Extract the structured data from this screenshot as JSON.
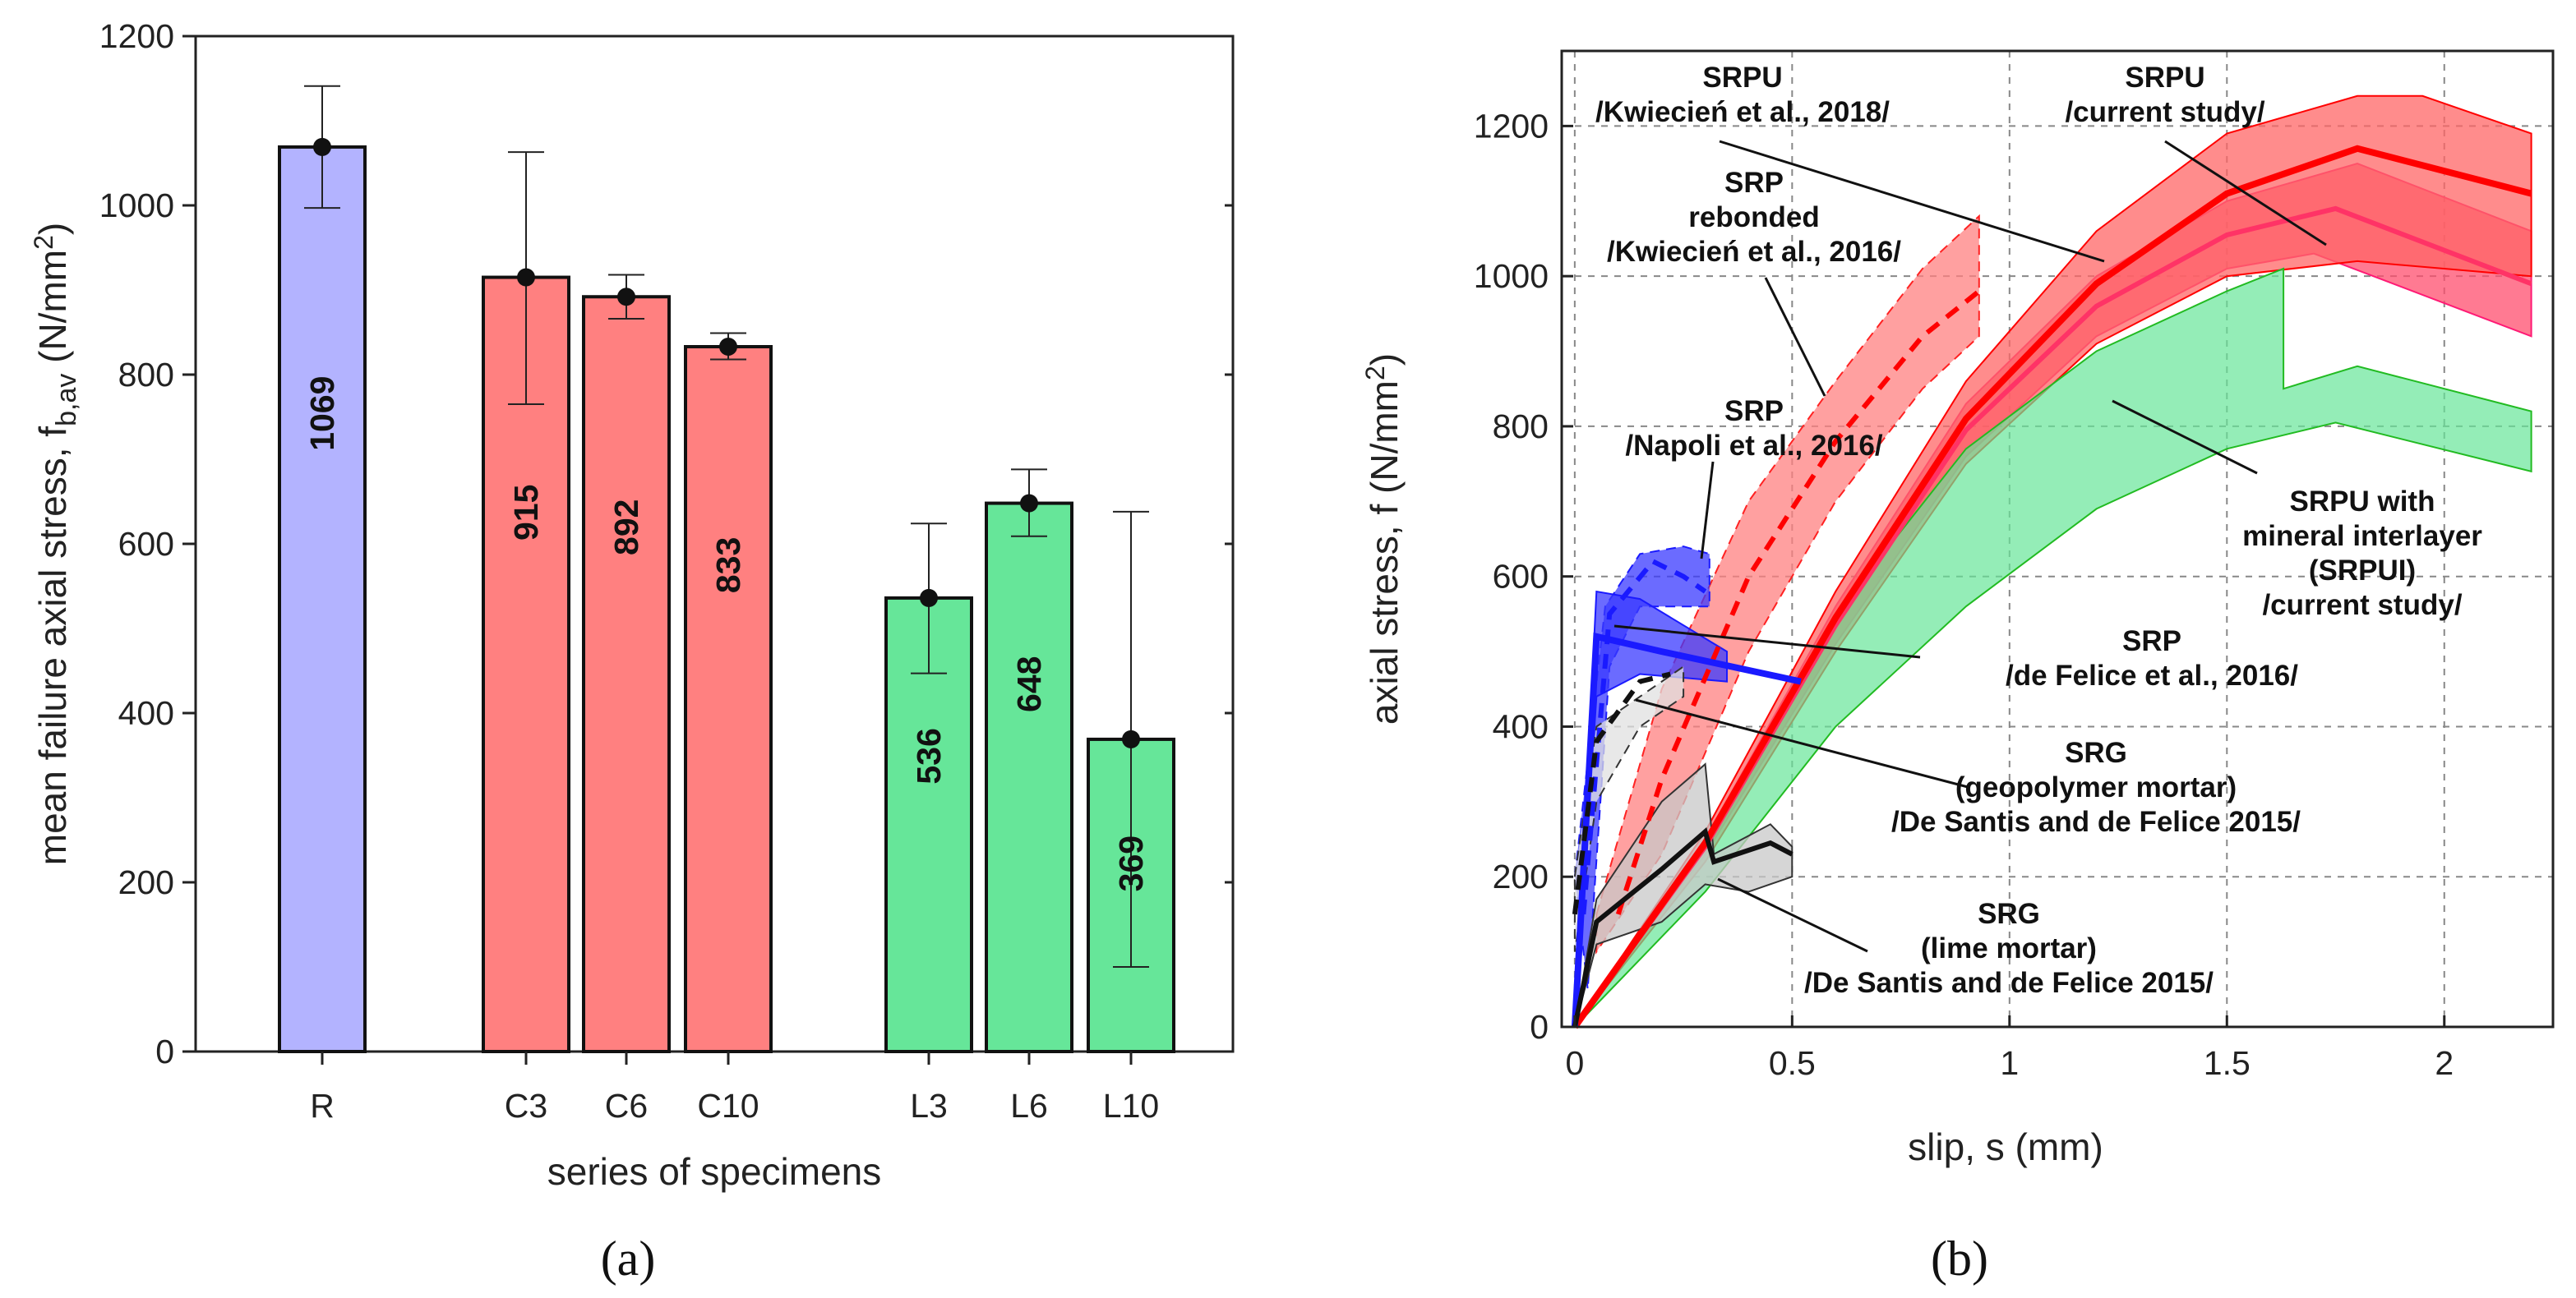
{
  "chart_data": [
    {
      "type": "bar",
      "panel_label": "(a)",
      "xlabel": "series of specimens",
      "ylabel": "mean failure axial stress, f",
      "ylabel_sub": "b,av",
      "ylabel_unit": " (N/mm",
      "ylabel_sup": "2",
      "ylabel_close": ")",
      "ylim": [
        0,
        1200
      ],
      "yticks": [
        0,
        200,
        400,
        600,
        800,
        1000,
        1200
      ],
      "categories": [
        "R",
        "C3",
        "C6",
        "C10",
        "L3",
        "L6",
        "L10"
      ],
      "values": [
        1069,
        915,
        892,
        833,
        536,
        648,
        369
      ],
      "value_labels": [
        "1069",
        "915",
        "892",
        "833",
        "536",
        "648",
        "369"
      ],
      "error_low": [
        997,
        765,
        866,
        818,
        447,
        609,
        100
      ],
      "error_high": [
        1141,
        1063,
        918,
        849,
        624,
        688,
        638
      ],
      "colors": [
        "#b3b3ff",
        "#ff8080",
        "#ff8080",
        "#ff8080",
        "#66e699",
        "#66e699",
        "#66e699"
      ]
    },
    {
      "type": "area",
      "panel_label": "(b)",
      "xlabel": "slip, s (mm)",
      "ylabel": "axial stress, f (N/mm",
      "ylabel_sup": "2",
      "ylabel_close": ")",
      "xlim": [
        -0.03,
        2.25
      ],
      "ylim": [
        0,
        1300
      ],
      "xticks": [
        0,
        0.5,
        1,
        1.5,
        2
      ],
      "xtick_labels": [
        "0",
        "0.5",
        "1",
        "1.5",
        "2"
      ],
      "yticks": [
        0,
        200,
        400,
        600,
        800,
        1000,
        1200
      ],
      "grid": true,
      "series": [
        {
          "name": "SRPU /Kwiecień et al., 2018/",
          "color": "#ff4d6d",
          "upper": [
            [
              0,
              0
            ],
            [
              0.3,
              250
            ],
            [
              0.6,
              560
            ],
            [
              0.9,
              830
            ],
            [
              1.2,
              1000
            ],
            [
              1.5,
              1100
            ],
            [
              1.8,
              1150
            ],
            [
              2.2,
              1060
            ]
          ],
          "lower": [
            [
              0,
              0
            ],
            [
              0.3,
              230
            ],
            [
              0.6,
              510
            ],
            [
              0.9,
              760
            ],
            [
              1.2,
              920
            ],
            [
              1.5,
              1010
            ],
            [
              1.7,
              1030
            ],
            [
              2.2,
              920
            ]
          ],
          "mean": [
            [
              0,
              0
            ],
            [
              0.3,
              240
            ],
            [
              0.6,
              535
            ],
            [
              0.9,
              795
            ],
            [
              1.2,
              960
            ],
            [
              1.5,
              1055
            ],
            [
              1.75,
              1090
            ],
            [
              2.2,
              990
            ]
          ]
        },
        {
          "name": "SRPU /current study/",
          "color": "#ff6666",
          "upper": [
            [
              0,
              0
            ],
            [
              0.3,
              260
            ],
            [
              0.6,
              580
            ],
            [
              0.9,
              860
            ],
            [
              1.2,
              1060
            ],
            [
              1.5,
              1190
            ],
            [
              1.8,
              1240
            ],
            [
              1.95,
              1240
            ],
            [
              2.2,
              1190
            ]
          ],
          "lower": [
            [
              0,
              0
            ],
            [
              0.3,
              220
            ],
            [
              0.6,
              500
            ],
            [
              0.9,
              750
            ],
            [
              1.2,
              910
            ],
            [
              1.5,
              1000
            ],
            [
              1.8,
              1020
            ],
            [
              2.2,
              1000
            ]
          ],
          "mean": [
            [
              0,
              0
            ],
            [
              0.3,
              245
            ],
            [
              0.6,
              545
            ],
            [
              0.9,
              810
            ],
            [
              1.2,
              990
            ],
            [
              1.5,
              1110
            ],
            [
              1.8,
              1170
            ],
            [
              2.2,
              1110
            ]
          ]
        },
        {
          "name": "SRPU with mineral interlayer (SRPUI) /current study/",
          "color": "#66e699",
          "upper": [
            [
              0,
              0
            ],
            [
              0.3,
              250
            ],
            [
              0.6,
              550
            ],
            [
              0.9,
              770
            ],
            [
              1.2,
              900
            ],
            [
              1.5,
              980
            ],
            [
              1.63,
              1010
            ],
            [
              1.63,
              850
            ],
            [
              1.8,
              880
            ],
            [
              2.2,
              820
            ]
          ],
          "lower": [
            [
              0,
              0
            ],
            [
              0.3,
              180
            ],
            [
              0.6,
              400
            ],
            [
              0.9,
              560
            ],
            [
              1.2,
              690
            ],
            [
              1.5,
              770
            ],
            [
              1.75,
              805
            ],
            [
              2.2,
              740
            ]
          ],
          "mean": []
        },
        {
          "name": "SRP rebonded /Kwiecień et al., 2016/",
          "color": "#ff8080",
          "upper": [
            [
              0.05,
              150
            ],
            [
              0.2,
              450
            ],
            [
              0.4,
              700
            ],
            [
              0.6,
              860
            ],
            [
              0.8,
              1010
            ],
            [
              0.93,
              1080
            ]
          ],
          "lower": [
            [
              0.05,
              100
            ],
            [
              0.2,
              230
            ],
            [
              0.4,
              500
            ],
            [
              0.6,
              700
            ],
            [
              0.8,
              850
            ],
            [
              0.93,
              920
            ]
          ],
          "mean": [
            [
              0.1,
              150
            ],
            [
              0.2,
              330
            ],
            [
              0.4,
              600
            ],
            [
              0.6,
              780
            ],
            [
              0.8,
              920
            ],
            [
              0.93,
              980
            ]
          ]
        },
        {
          "name": "SRP /Napoli et al., 2016/",
          "color": "#3a3aff",
          "upper": [
            [
              0.0,
              200
            ],
            [
              0.07,
              560
            ],
            [
              0.15,
              630
            ],
            [
              0.25,
              640
            ],
            [
              0.31,
              630
            ]
          ],
          "lower": [
            [
              0.03,
              50
            ],
            [
              0.08,
              480
            ],
            [
              0.15,
              560
            ],
            [
              0.25,
              560
            ],
            [
              0.31,
              560
            ]
          ],
          "mean": [
            [
              0.02,
              150
            ],
            [
              0.08,
              550
            ],
            [
              0.18,
              620
            ],
            [
              0.25,
              600
            ],
            [
              0.3,
              580
            ]
          ]
        },
        {
          "name": "SRP /de Felice et al., 2016/",
          "color": "#3a3aff",
          "upper": [
            [
              0,
              0
            ],
            [
              0.05,
              580
            ],
            [
              0.15,
              570
            ],
            [
              0.35,
              500
            ]
          ],
          "lower": [
            [
              0,
              0
            ],
            [
              0.05,
              440
            ],
            [
              0.15,
              470
            ],
            [
              0.35,
              460
            ]
          ],
          "mean": [
            [
              0,
              0
            ],
            [
              0.05,
              520
            ],
            [
              0.2,
              500
            ],
            [
              0.52,
              460
            ]
          ]
        },
        {
          "name": "SRG (geopolymer mortar) /De Santis and de Felice 2015/",
          "color": "#e0e0e0",
          "upper": [
            [
              0,
              200
            ],
            [
              0.05,
              400
            ],
            [
              0.15,
              440
            ],
            [
              0.25,
              480
            ]
          ],
          "lower": [
            [
              0,
              100
            ],
            [
              0.05,
              300
            ],
            [
              0.15,
              400
            ],
            [
              0.25,
              440
            ]
          ],
          "mean": [
            [
              0,
              150
            ],
            [
              0.05,
              380
            ],
            [
              0.15,
              460
            ],
            [
              0.22,
              470
            ]
          ]
        },
        {
          "name": "SRG (lime mortar) /De Santis and de Felice 2015/",
          "color": "#c8c8c8",
          "upper": [
            [
              0,
              0
            ],
            [
              0.05,
              170
            ],
            [
              0.2,
              300
            ],
            [
              0.3,
              350
            ],
            [
              0.32,
              230
            ],
            [
              0.45,
              270
            ],
            [
              0.5,
              240
            ]
          ],
          "lower": [
            [
              0,
              0
            ],
            [
              0.05,
              110
            ],
            [
              0.2,
              140
            ],
            [
              0.3,
              190
            ],
            [
              0.4,
              180
            ],
            [
              0.5,
              200
            ]
          ],
          "mean": [
            [
              0,
              0
            ],
            [
              0.05,
              140
            ],
            [
              0.2,
              210
            ],
            [
              0.3,
              260
            ],
            [
              0.32,
              220
            ],
            [
              0.45,
              245
            ],
            [
              0.5,
              230
            ]
          ]
        }
      ],
      "annotations": [
        {
          "lines": [
            "SRPU",
            "/Kwiecień et al., 2018/"
          ]
        },
        {
          "lines": [
            "SRPU",
            "/current study/"
          ]
        },
        {
          "lines": [
            "SRP",
            "rebonded",
            "/Kwiecień et al., 2016/"
          ]
        },
        {
          "lines": [
            "SRP",
            "/Napoli et al., 2016/"
          ]
        },
        {
          "lines": [
            "SRPU with",
            "mineral interlayer",
            "(SRPUI)",
            "/current study/"
          ]
        },
        {
          "lines": [
            "SRP",
            "/de Felice et al., 2016/"
          ]
        },
        {
          "lines": [
            "SRG",
            "(geopolymer mortar)",
            "/De Santis and de Felice 2015/"
          ]
        },
        {
          "lines": [
            "SRG",
            "(lime mortar)",
            "/De Santis and de Felice 2015/"
          ]
        }
      ]
    }
  ]
}
